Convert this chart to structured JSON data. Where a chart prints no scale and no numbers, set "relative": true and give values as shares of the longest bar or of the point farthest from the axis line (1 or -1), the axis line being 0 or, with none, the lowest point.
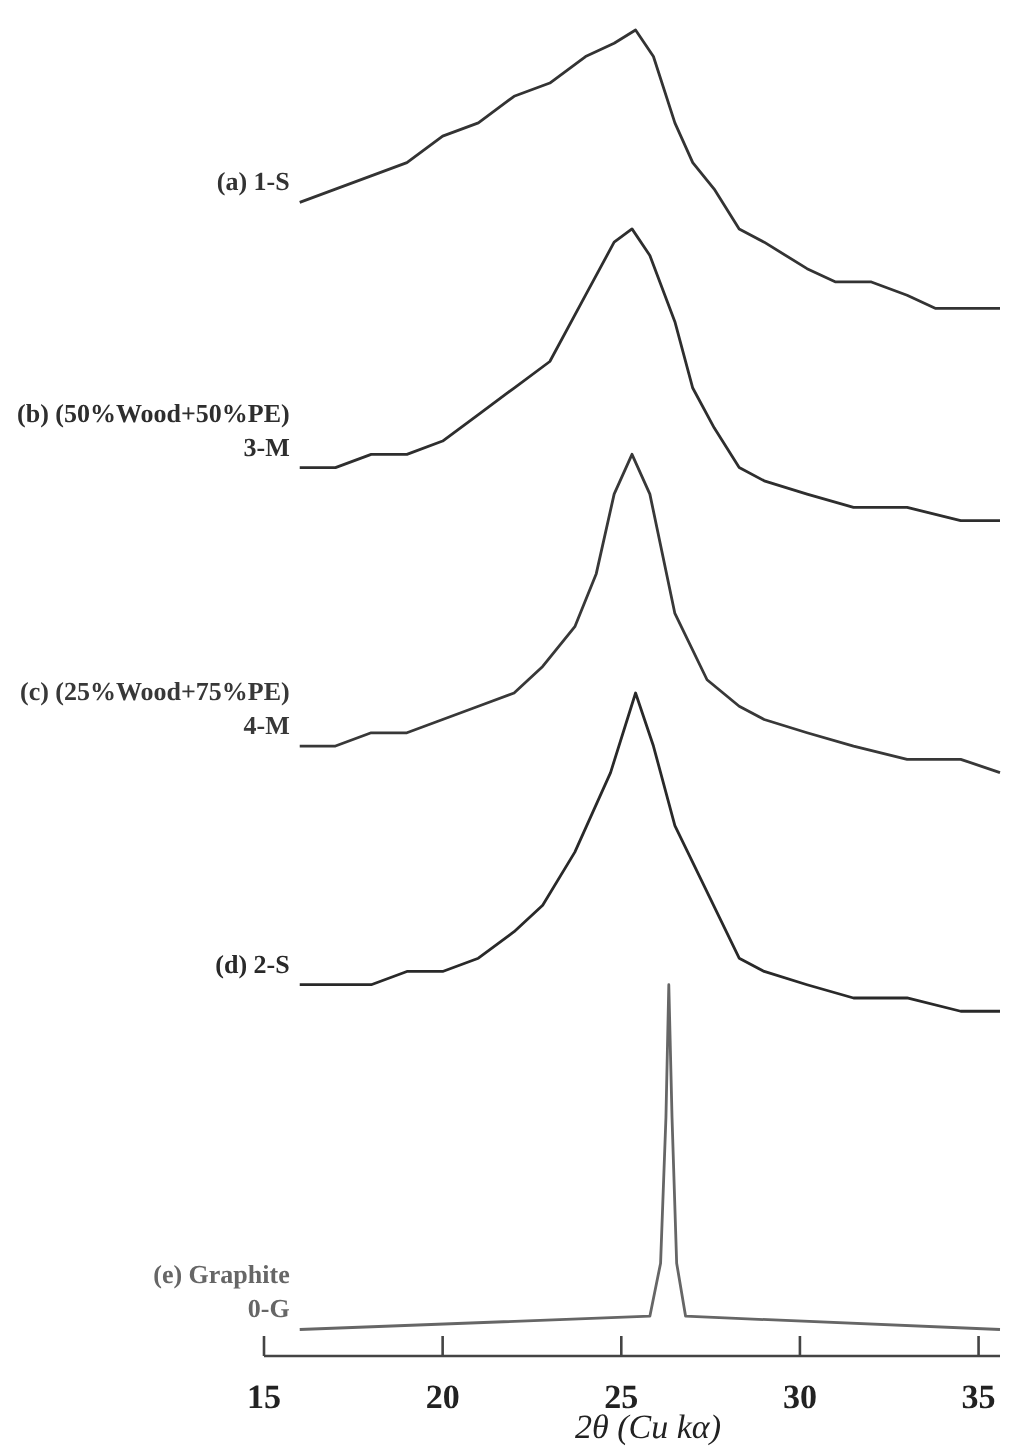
{
  "chart_data": {
    "type": "line",
    "relative": true,
    "xlim": [
      15,
      35.6
    ],
    "xticks": [
      15,
      20,
      25,
      30,
      35
    ],
    "xlabel": "2θ (Cu kα)",
    "series": [
      {
        "name": "(a) 1-S",
        "color": "#333333",
        "x": [
          16,
          17,
          18,
          19,
          20,
          21,
          22,
          23,
          24,
          24.8,
          25.4,
          25.9,
          26.5,
          27,
          27.6,
          28.3,
          29,
          30.2,
          31,
          32,
          33,
          33.8,
          34.6,
          35.6
        ],
        "values": [
          0.87,
          0.88,
          0.89,
          0.9,
          0.92,
          0.93,
          0.95,
          0.96,
          0.98,
          0.99,
          1,
          0.98,
          0.93,
          0.9,
          0.88,
          0.85,
          0.84,
          0.82,
          0.81,
          0.81,
          0.8,
          0.79,
          0.79,
          0.79
        ]
      },
      {
        "name": "(b) (50%Wood+50%PE)\n3-M",
        "color": "#2e2e2e",
        "x": [
          16,
          17,
          18,
          19,
          20,
          21,
          22,
          23,
          24,
          24.8,
          25.3,
          25.8,
          26.5,
          27,
          27.6,
          28.3,
          29,
          30.2,
          31.5,
          33,
          34.5,
          35.6
        ],
        "values": [
          0.67,
          0.67,
          0.68,
          0.68,
          0.69,
          0.71,
          0.73,
          0.75,
          0.8,
          0.84,
          0.85,
          0.83,
          0.78,
          0.73,
          0.7,
          0.67,
          0.66,
          0.65,
          0.64,
          0.64,
          0.63,
          0.63
        ]
      },
      {
        "name": "(c) (25%Wood+75%PE)\n4-M",
        "color": "#383838",
        "x": [
          16,
          17,
          18,
          19,
          20,
          21,
          22,
          22.8,
          23.7,
          24.3,
          24.8,
          25.3,
          25.8,
          26.5,
          27.4,
          28.3,
          29,
          30.2,
          31.5,
          33,
          34.5,
          35.6
        ],
        "values": [
          0.46,
          0.46,
          0.47,
          0.47,
          0.48,
          0.49,
          0.5,
          0.52,
          0.55,
          0.59,
          0.65,
          0.68,
          0.65,
          0.56,
          0.51,
          0.49,
          0.48,
          0.47,
          0.46,
          0.45,
          0.45,
          0.44
        ]
      },
      {
        "name": "(d) 2-S",
        "color": "#292929",
        "x": [
          16,
          17,
          18,
          19,
          20,
          21,
          22,
          22.8,
          23.7,
          24.7,
          25.4,
          25.9,
          26.5,
          27.4,
          28.3,
          29,
          30.2,
          31.5,
          33,
          34.5,
          35.6
        ],
        "values": [
          0.28,
          0.28,
          0.28,
          0.29,
          0.29,
          0.3,
          0.32,
          0.34,
          0.38,
          0.44,
          0.5,
          0.46,
          0.4,
          0.35,
          0.3,
          0.29,
          0.28,
          0.27,
          0.27,
          0.26,
          0.26
        ]
      },
      {
        "name": "(e) Graphite\n0-G",
        "color": "#666666",
        "x": [
          16,
          25.8,
          26.1,
          26.25,
          26.33,
          26.42,
          26.55,
          26.8,
          35.6
        ],
        "values": [
          0.02,
          0.03,
          0.07,
          0.18,
          0.28,
          0.18,
          0.07,
          0.03,
          0.02
        ]
      }
    ]
  }
}
